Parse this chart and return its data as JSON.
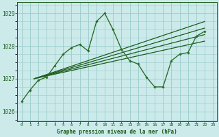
{
  "title": "Graphe pression niveau de la mer (hPa)",
  "bg_color": "#cceaea",
  "grid_color": "#99cccc",
  "line_color_dark": "#1a5c1a",
  "line_color_medium": "#2a6e2a",
  "xlim": [
    -0.5,
    23.5
  ],
  "ylim": [
    1025.7,
    1029.35
  ],
  "yticks": [
    1026,
    1027,
    1028,
    1029
  ],
  "xticks": [
    0,
    1,
    2,
    3,
    4,
    5,
    6,
    7,
    8,
    9,
    10,
    11,
    12,
    13,
    14,
    15,
    16,
    17,
    18,
    19,
    20,
    21,
    22,
    23
  ],
  "main_x": [
    0,
    1,
    2,
    3,
    4,
    5,
    6,
    7,
    8,
    9,
    10,
    11,
    12,
    13,
    14,
    15,
    16,
    17,
    18,
    19,
    20,
    21,
    22
  ],
  "main_y": [
    1026.3,
    1026.65,
    1026.95,
    1027.05,
    1027.4,
    1027.75,
    1027.95,
    1028.05,
    1027.85,
    1028.75,
    1029.0,
    1028.5,
    1027.9,
    1027.55,
    1027.45,
    1027.05,
    1026.75,
    1026.75,
    1027.55,
    1027.75,
    1027.8,
    1028.3,
    1028.45
  ],
  "trend_lines": [
    {
      "x": [
        1.5,
        22
      ],
      "y": [
        1027.0,
        1028.15
      ]
    },
    {
      "x": [
        1.5,
        22
      ],
      "y": [
        1027.0,
        1028.35
      ]
    },
    {
      "x": [
        1.5,
        22
      ],
      "y": [
        1027.0,
        1028.55
      ]
    },
    {
      "x": [
        1.5,
        22
      ],
      "y": [
        1027.0,
        1028.75
      ]
    }
  ]
}
